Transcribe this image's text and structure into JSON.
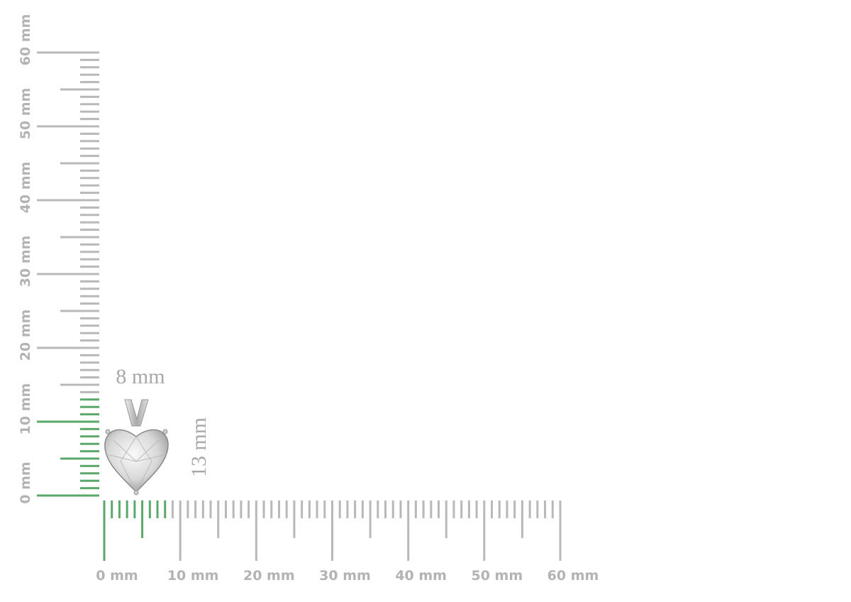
{
  "horizontal_ruler": {
    "labels": [
      "0 mm",
      "10 mm",
      "20 mm",
      "30 mm",
      "40 mm",
      "50 mm",
      "60 mm"
    ]
  },
  "vertical_ruler": {
    "labels": [
      "0 mm",
      "10 mm",
      "20 mm",
      "30 mm",
      "40 mm",
      "50 mm",
      "60 mm"
    ]
  },
  "dimensions": {
    "width": {
      "value": 8,
      "label": "8 mm"
    },
    "height": {
      "value": 13,
      "label": "13 mm"
    }
  }
}
